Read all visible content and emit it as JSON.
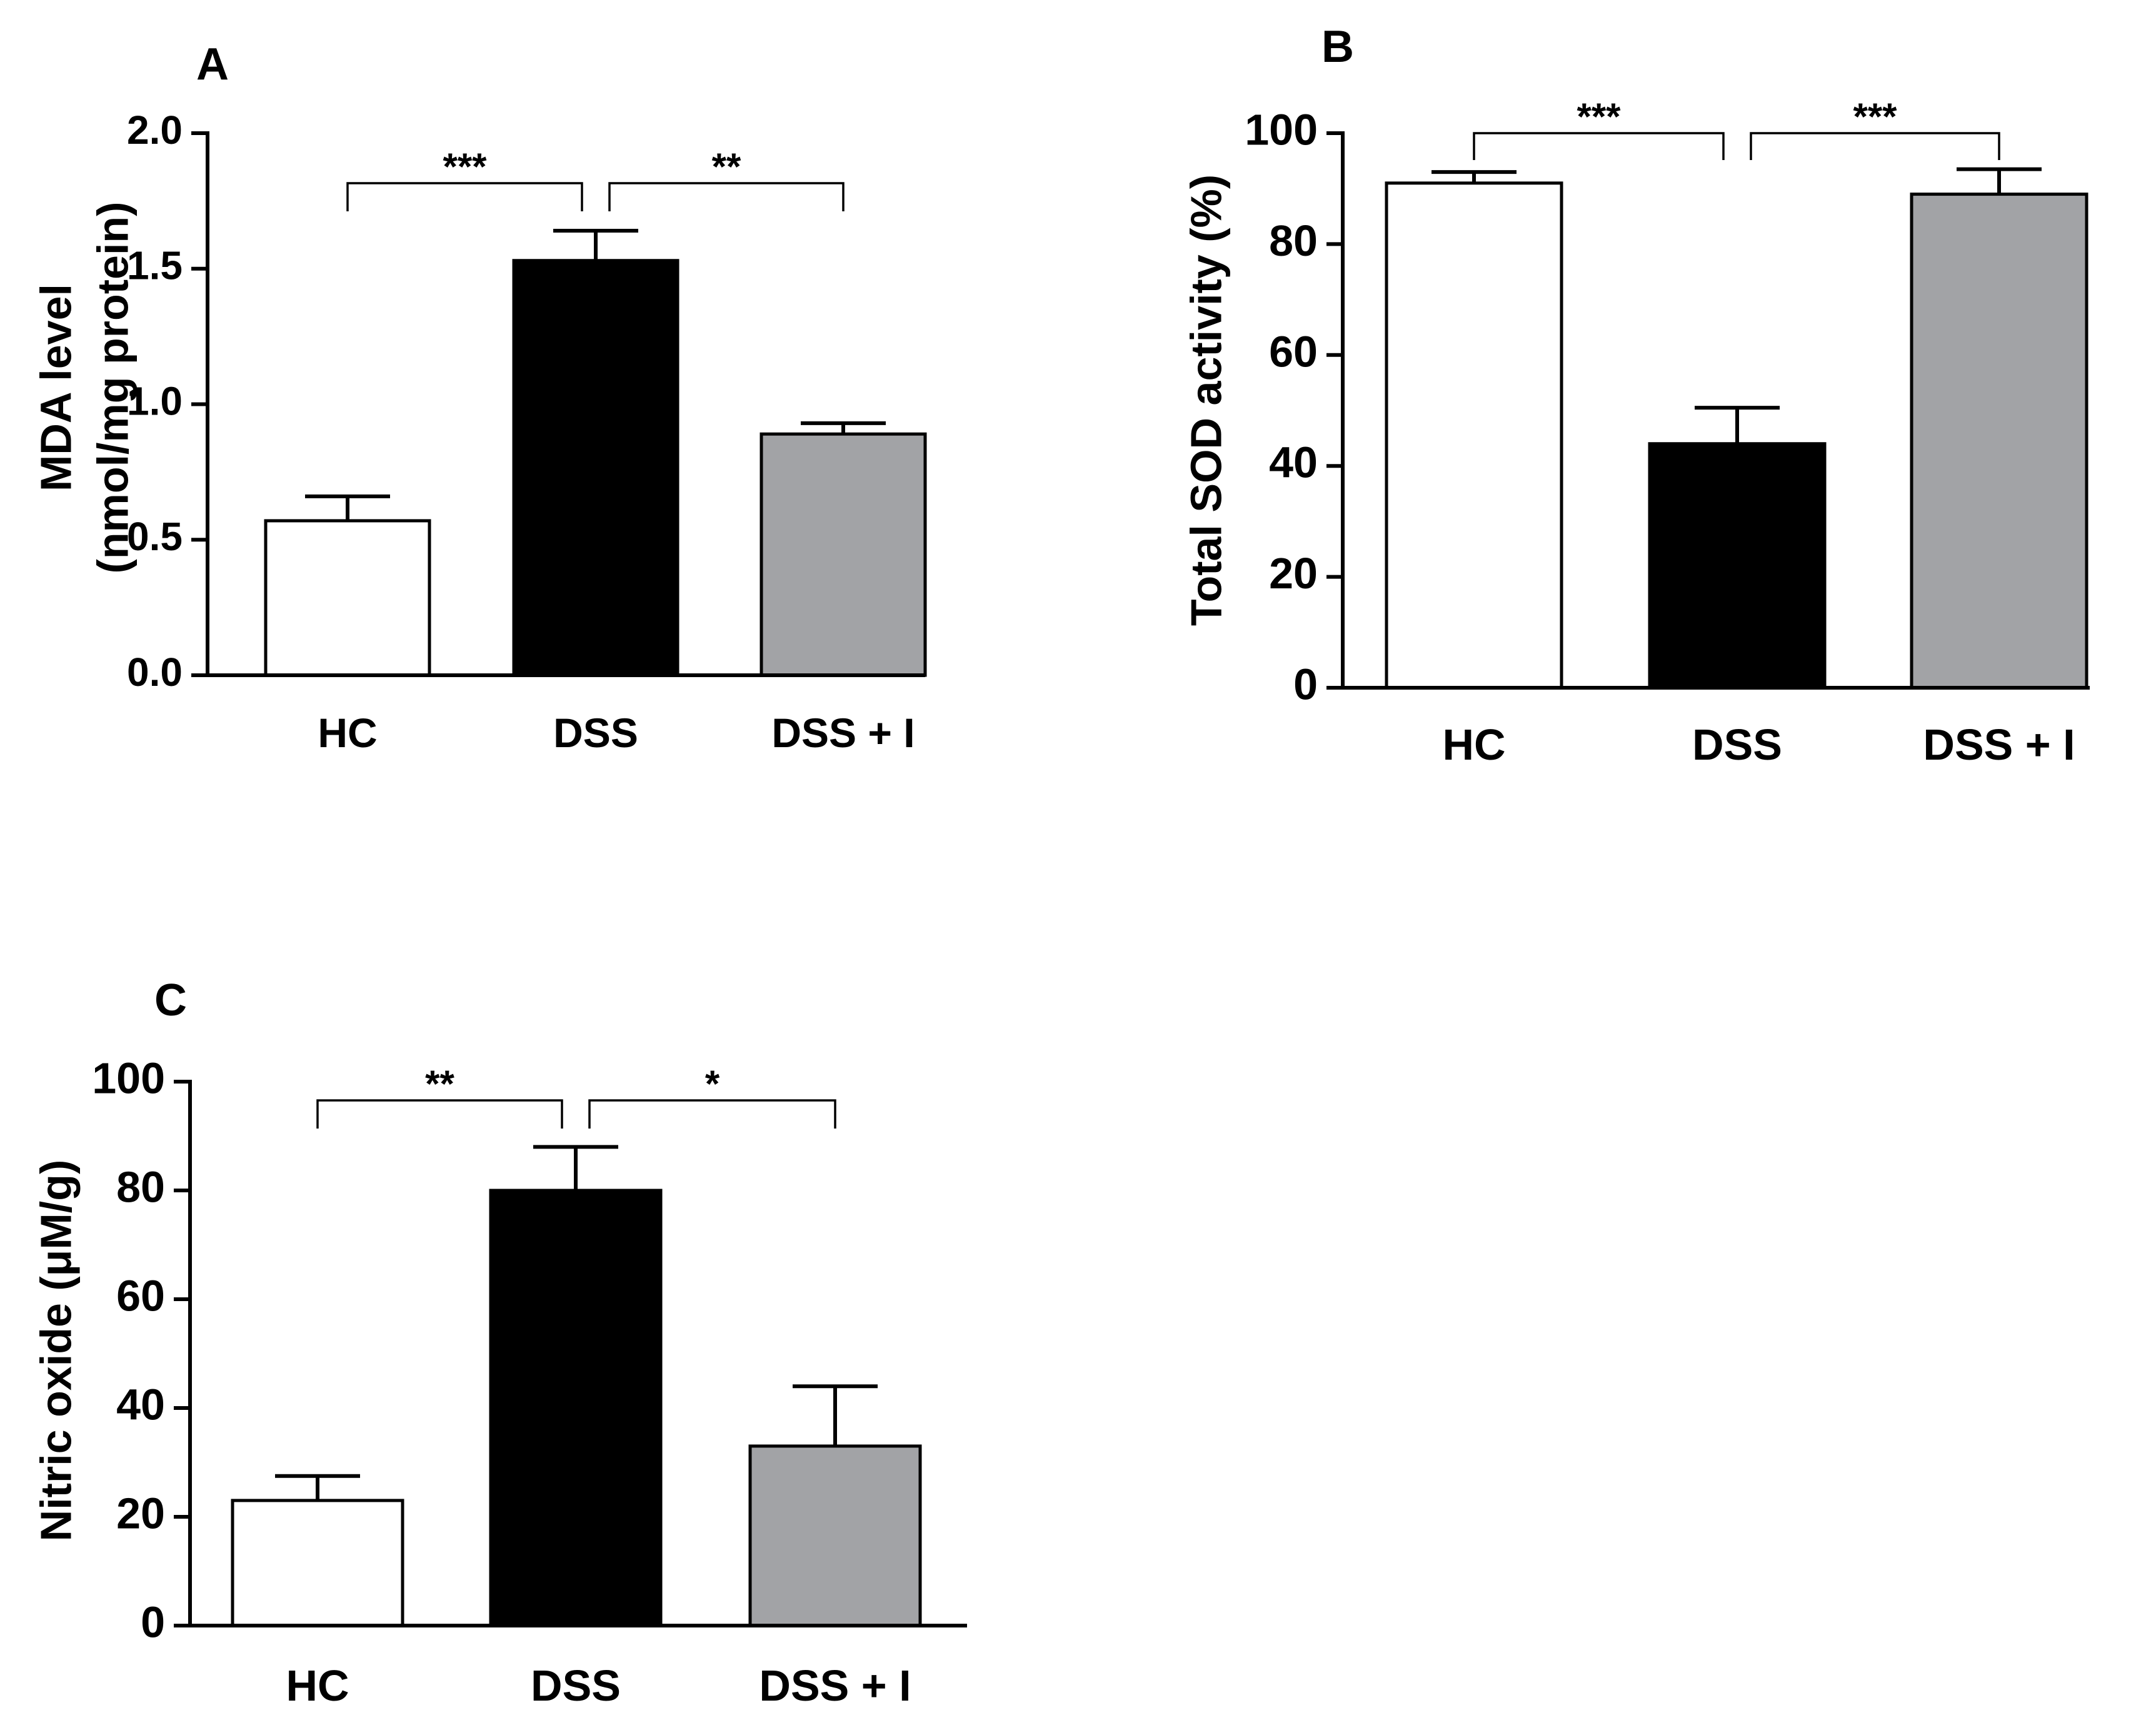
{
  "figure": {
    "colors": {
      "HC": "#ffffff",
      "DSS": "#000000",
      "DSS + I": "#a2a3a6"
    }
  },
  "chart_data": [
    {
      "panel": "A",
      "type": "bar",
      "categories": [
        "HC",
        "DSS",
        "DSS + I"
      ],
      "values": [
        0.57,
        1.53,
        0.89
      ],
      "errors": [
        0.09,
        0.11,
        0.04
      ],
      "ylabel_lines": [
        "MDA level",
        "(nmol/mg protein)"
      ],
      "ylim": [
        0,
        2.0
      ],
      "yticks": [
        0,
        0.5,
        1.0,
        1.5,
        2.0
      ],
      "ytick_labels": [
        "0.0",
        "0.5",
        "1.0",
        "1.5",
        "2.0"
      ],
      "significance": [
        {
          "from": 0,
          "to": 1,
          "label": "***"
        },
        {
          "from": 1,
          "to": 2,
          "label": "**"
        }
      ]
    },
    {
      "panel": "B",
      "type": "bar",
      "categories": [
        "HC",
        "DSS",
        "DSS + I"
      ],
      "values": [
        91,
        44,
        89
      ],
      "errors": [
        2,
        6.5,
        4.5
      ],
      "ylabel_lines": [
        "Total SOD activity (%)"
      ],
      "ylim": [
        0,
        100
      ],
      "yticks": [
        0,
        20,
        40,
        60,
        80,
        100
      ],
      "ytick_labels": [
        "0",
        "20",
        "40",
        "60",
        "80",
        "100"
      ],
      "significance": [
        {
          "from": 0,
          "to": 1,
          "label": "***"
        },
        {
          "from": 1,
          "to": 2,
          "label": "***"
        }
      ]
    },
    {
      "panel": "C",
      "type": "bar",
      "categories": [
        "HC",
        "DSS",
        "DSS + I"
      ],
      "values": [
        23,
        80,
        33
      ],
      "errors": [
        4.5,
        8,
        11
      ],
      "ylabel_lines": [
        "Nitric oxide (μM/g)"
      ],
      "ylim": [
        0,
        100
      ],
      "yticks": [
        0,
        20,
        40,
        60,
        80,
        100
      ],
      "ytick_labels": [
        "0",
        "20",
        "40",
        "60",
        "80",
        "100"
      ],
      "significance": [
        {
          "from": 0,
          "to": 1,
          "label": "**"
        },
        {
          "from": 1,
          "to": 2,
          "label": "*"
        }
      ]
    }
  ]
}
